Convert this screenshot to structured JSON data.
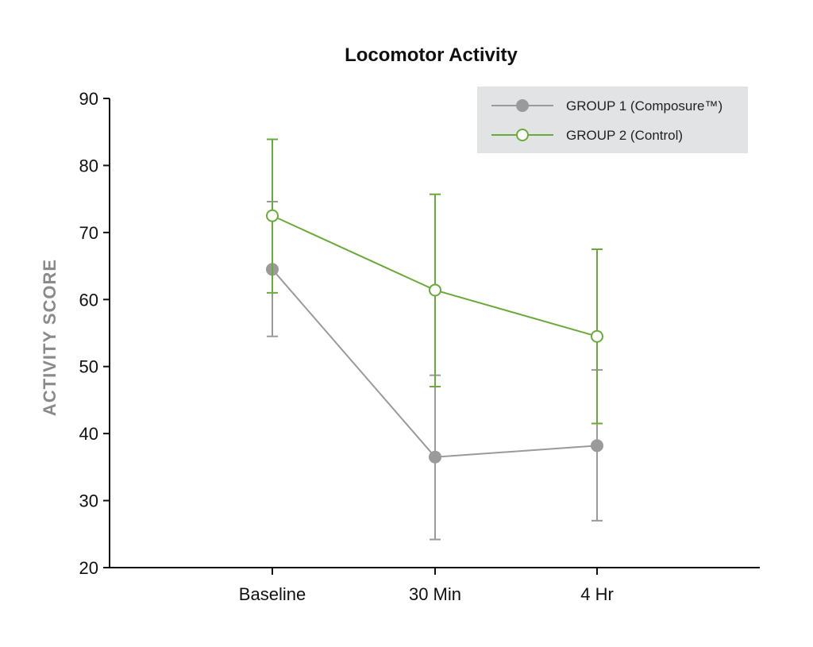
{
  "chart_data": {
    "type": "line",
    "title": "Locomotor Activity",
    "xlabel": "",
    "ylabel": "ACTIVITY SCORE",
    "categories": [
      "Baseline",
      "30 Min",
      "4 Hr"
    ],
    "ylim": [
      20,
      90
    ],
    "yticks": [
      20,
      30,
      40,
      50,
      60,
      70,
      80,
      90
    ],
    "legend_position": "top-right",
    "grid": false,
    "series": [
      {
        "name": "GROUP 1 (Composure™)",
        "color": "#9a9a9a",
        "marker": "filled-circle",
        "values": [
          64.5,
          36.5,
          38.2
        ],
        "error_low": [
          54.5,
          24.2,
          27.0
        ],
        "error_high": [
          74.6,
          48.7,
          49.5
        ]
      },
      {
        "name": "GROUP 2 (Control)",
        "color": "#6aaa3a",
        "marker": "open-circle",
        "values": [
          72.5,
          61.4,
          54.5
        ],
        "error_low": [
          61.0,
          47.0,
          41.5
        ],
        "error_high": [
          83.9,
          75.7,
          67.5
        ]
      }
    ]
  }
}
